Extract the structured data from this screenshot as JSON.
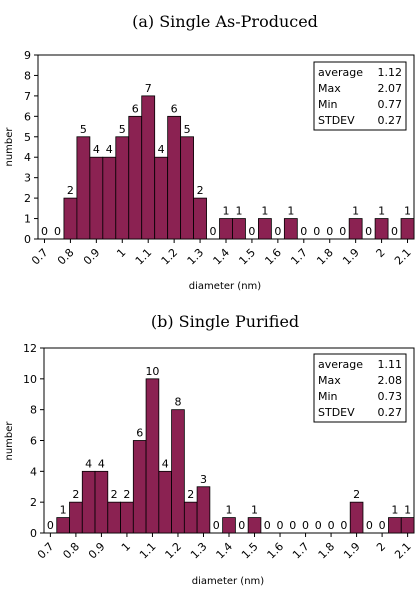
{
  "colors": {
    "bar": "#8b2252",
    "bar_stroke": "#000000",
    "axis": "#000000",
    "background": "#ffffff"
  },
  "chart_data": [
    {
      "type": "bar",
      "title": "(a) Single As-Produced",
      "xlabel": "diameter (nm)",
      "ylabel": "number",
      "ylim": [
        0,
        9
      ],
      "y_ticks": [
        0,
        1,
        2,
        3,
        4,
        5,
        6,
        7,
        8,
        9
      ],
      "x_ticks": [
        "0.7",
        "0.8",
        "0.9",
        "1",
        "1.1",
        "1.2",
        "1.3",
        "1.4",
        "1.5",
        "1.6",
        "1.7",
        "1.8",
        "1.9",
        "2",
        "2.1"
      ],
      "x": [
        0.7,
        0.75,
        0.8,
        0.85,
        0.9,
        0.95,
        1.0,
        1.05,
        1.1,
        1.15,
        1.2,
        1.25,
        1.3,
        1.35,
        1.4,
        1.45,
        1.5,
        1.55,
        1.6,
        1.65,
        1.7,
        1.75,
        1.8,
        1.85,
        1.9,
        1.95,
        2.0,
        2.05,
        2.1
      ],
      "values": [
        0,
        0,
        2,
        5,
        4,
        4,
        5,
        6,
        7,
        4,
        6,
        5,
        2,
        0,
        1,
        1,
        0,
        1,
        0,
        1,
        0,
        0,
        0,
        0,
        1,
        0,
        1,
        0,
        1
      ],
      "grid": false,
      "stats": [
        {
          "label": "average",
          "value": "1.12"
        },
        {
          "label": "Max",
          "value": "2.07"
        },
        {
          "label": "Min",
          "value": "0.77"
        },
        {
          "label": "STDEV",
          "value": "0.27"
        }
      ],
      "stats_placement": "top-right"
    },
    {
      "type": "bar",
      "title": "(b) Single Purified",
      "xlabel": "diameter (nm)",
      "ylabel": "number",
      "ylim": [
        0,
        12
      ],
      "y_ticks": [
        0,
        2,
        4,
        6,
        8,
        10,
        12
      ],
      "x_ticks": [
        "0.7",
        "0.8",
        "0.9",
        "1",
        "1.1",
        "1.2",
        "1.3",
        "1.4",
        "1.5",
        "1.6",
        "1.7",
        "1.8",
        "1.9",
        "2",
        "2.1"
      ],
      "x": [
        0.7,
        0.75,
        0.8,
        0.85,
        0.9,
        0.95,
        1.0,
        1.05,
        1.1,
        1.15,
        1.2,
        1.25,
        1.3,
        1.35,
        1.4,
        1.45,
        1.5,
        1.55,
        1.6,
        1.65,
        1.7,
        1.75,
        1.8,
        1.85,
        1.9,
        1.95,
        2.0,
        2.05,
        2.1
      ],
      "values": [
        0,
        1,
        2,
        4,
        4,
        2,
        2,
        6,
        10,
        4,
        8,
        2,
        3,
        0,
        1,
        0,
        1,
        0,
        0,
        0,
        0,
        0,
        0,
        0,
        2,
        0,
        0,
        1,
        1
      ],
      "grid": false,
      "stats": [
        {
          "label": "average",
          "value": "1.11"
        },
        {
          "label": "Max",
          "value": "2.08"
        },
        {
          "label": "Min",
          "value": "0.73"
        },
        {
          "label": "STDEV",
          "value": "0.27"
        }
      ],
      "stats_placement": "top-right"
    }
  ]
}
